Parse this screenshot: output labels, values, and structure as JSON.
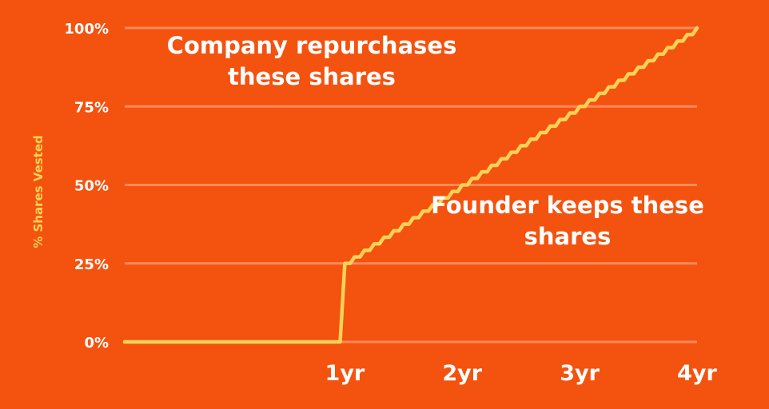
{
  "colors": {
    "background": "#f4520f",
    "line": "#ffd257",
    "grid": "#ff8a5a",
    "tick_text": "#ffffff",
    "axis_label": "#ffd257"
  },
  "annotations": {
    "repurchase": "Company repurchases these shares",
    "keeps": "Founder keeps these shares"
  },
  "chart_data": {
    "type": "line",
    "title": "",
    "xlabel": "",
    "ylabel": "% Shares Vested",
    "xlim": [
      -0.875,
      4
    ],
    "ylim": [
      0,
      100
    ],
    "x_ticks": [
      {
        "value": 1,
        "label": "1yr"
      },
      {
        "value": 2,
        "label": "2yr"
      },
      {
        "value": 3,
        "label": "3yr"
      },
      {
        "value": 4,
        "label": "4yr"
      }
    ],
    "y_ticks": [
      {
        "value": 0,
        "label": "0%"
      },
      {
        "value": 25,
        "label": "25%"
      },
      {
        "value": 50,
        "label": "50%"
      },
      {
        "value": 75,
        "label": "75%"
      },
      {
        "value": 100,
        "label": "100%"
      }
    ],
    "grid": true,
    "legend": "none",
    "series": [
      {
        "vesting": {
          "cliff_year": 1,
          "cliff_percent": 25,
          "end_year": 4,
          "end_percent": 100,
          "monthly_steps": 36
        },
        "points": [
          {
            "x": -0.875,
            "y": 0
          },
          {
            "x": 0.96,
            "y": 0
          },
          {
            "x": 1,
            "y": 25
          },
          {
            "x": 4,
            "y": 100
          }
        ]
      }
    ]
  }
}
